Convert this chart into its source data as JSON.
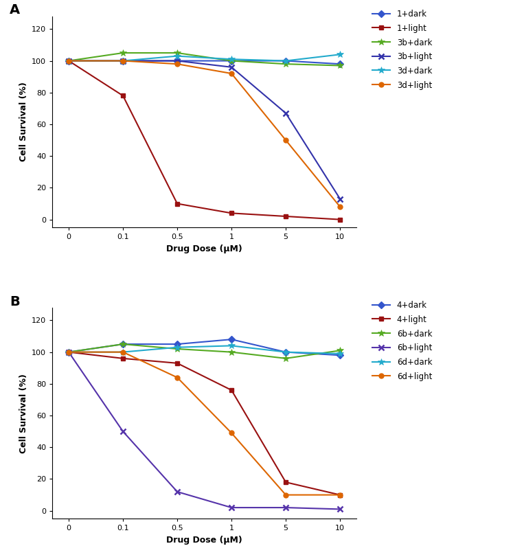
{
  "x": [
    0,
    0.1,
    0.5,
    1,
    5,
    10
  ],
  "panel_A": {
    "label": "A",
    "series": [
      {
        "label": "1+dark",
        "color": "#3355cc",
        "marker": "D",
        "markersize": 5,
        "values": [
          100,
          100,
          100,
          100,
          100,
          98
        ],
        "lw": 1.5
      },
      {
        "label": "1+light",
        "color": "#991111",
        "marker": "s",
        "markersize": 5,
        "values": [
          100,
          78,
          10,
          4,
          2,
          0
        ],
        "lw": 1.5
      },
      {
        "label": "3b+dark",
        "color": "#55aa22",
        "marker": "*",
        "markersize": 7,
        "values": [
          100,
          105,
          105,
          100,
          98,
          97
        ],
        "lw": 1.5
      },
      {
        "label": "3b+light",
        "color": "#3333aa",
        "marker": "x",
        "markersize": 6,
        "values": [
          100,
          100,
          100,
          96,
          67,
          13
        ],
        "lw": 1.5
      },
      {
        "label": "3d+dark",
        "color": "#22aacc",
        "marker": "*",
        "markersize": 7,
        "values": [
          100,
          100,
          103,
          101,
          100,
          104
        ],
        "lw": 1.5
      },
      {
        "label": "3d+light",
        "color": "#dd6600",
        "marker": "o",
        "markersize": 5,
        "values": [
          100,
          100,
          98,
          92,
          50,
          8
        ],
        "lw": 1.5
      }
    ]
  },
  "panel_B": {
    "label": "B",
    "series": [
      {
        "label": "4+dark",
        "color": "#3355cc",
        "marker": "D",
        "markersize": 5,
        "values": [
          100,
          105,
          105,
          108,
          100,
          98
        ],
        "lw": 1.5
      },
      {
        "label": "4+light",
        "color": "#991111",
        "marker": "s",
        "markersize": 5,
        "values": [
          100,
          96,
          93,
          76,
          18,
          10
        ],
        "lw": 1.5
      },
      {
        "label": "6b+dark",
        "color": "#55aa22",
        "marker": "*",
        "markersize": 7,
        "values": [
          100,
          105,
          102,
          100,
          96,
          101
        ],
        "lw": 1.5
      },
      {
        "label": "6b+light",
        "color": "#5533aa",
        "marker": "x",
        "markersize": 6,
        "values": [
          100,
          50,
          12,
          2,
          2,
          1
        ],
        "lw": 1.5
      },
      {
        "label": "6d+dark",
        "color": "#22aacc",
        "marker": "*",
        "markersize": 7,
        "values": [
          100,
          100,
          103,
          104,
          100,
          99
        ],
        "lw": 1.5
      },
      {
        "label": "6d+light",
        "color": "#dd6600",
        "marker": "o",
        "markersize": 5,
        "values": [
          100,
          100,
          84,
          49,
          10,
          10
        ],
        "lw": 1.5
      }
    ]
  },
  "xlabel": "Drug Dose (μM)",
  "ylabel": "Cell Survival (%)",
  "ylim": [
    -5,
    128
  ],
  "yticks": [
    0,
    20,
    40,
    60,
    80,
    100,
    120
  ],
  "xtick_labels": [
    "0",
    "0.1",
    "0.5",
    "1",
    "5",
    "10"
  ],
  "legend_fontsize": 8.5,
  "axis_label_fontsize": 9,
  "tick_fontsize": 8,
  "panel_label_fontsize": 14,
  "background_color": "#ffffff"
}
